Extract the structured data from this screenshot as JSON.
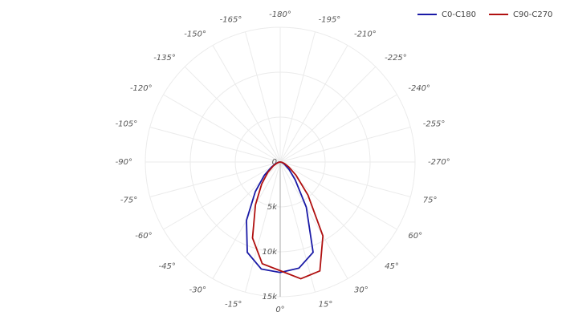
{
  "chart_data": {
    "type": "polar",
    "theta": [
      -90,
      -80,
      -70,
      -60,
      -50,
      -40,
      -30,
      -20,
      -10,
      0,
      10,
      20,
      30,
      40,
      50,
      60,
      70,
      80,
      90
    ],
    "series": [
      {
        "name": "C0-C180",
        "color": "#1a1aa6",
        "values": [
          0,
          200,
          500,
          1100,
          2300,
          4300,
          7500,
          10700,
          12100,
          12300,
          12000,
          10700,
          5800,
          2600,
          1300,
          600,
          300,
          100,
          0
        ]
      },
      {
        "name": "C90-C270",
        "color": "#b01010",
        "values": [
          0,
          150,
          400,
          900,
          1800,
          3200,
          5500,
          9000,
          11500,
          12100,
          13200,
          12900,
          9500,
          4800,
          2300,
          1100,
          500,
          200,
          0
        ]
      }
    ],
    "rlim": [
      0,
      15000
    ],
    "rticks": [
      0,
      {
        "value": 5000,
        "label": "5k"
      },
      {
        "value": 10000,
        "label": "10k"
      },
      {
        "value": 15000,
        "label": "15k"
      }
    ],
    "thetaticks": [
      {
        "value": 0,
        "label": "0°"
      },
      {
        "value": 15,
        "label": "15°"
      },
      {
        "value": 30,
        "label": "30°"
      },
      {
        "value": 45,
        "label": "45°"
      },
      {
        "value": 60,
        "label": "60°"
      },
      {
        "value": 75,
        "label": "75°"
      },
      {
        "value": -270,
        "label": "-270°"
      },
      {
        "value": -255,
        "label": "-255°"
      },
      {
        "value": -240,
        "label": "-240°"
      },
      {
        "value": -225,
        "label": "-225°"
      },
      {
        "value": -210,
        "label": "-210°"
      },
      {
        "value": -195,
        "label": "-195°"
      },
      {
        "value": -180,
        "label": "-180°"
      },
      {
        "value": -165,
        "label": "-165°"
      },
      {
        "value": -150,
        "label": "-150°"
      },
      {
        "value": -135,
        "label": "-135°"
      },
      {
        "value": -120,
        "label": "-120°"
      },
      {
        "value": -105,
        "label": "-105°"
      },
      {
        "value": -90,
        "label": "-90°"
      },
      {
        "value": -75,
        "label": "-75°"
      },
      {
        "value": -60,
        "label": "-60°"
      },
      {
        "value": -45,
        "label": "-45°"
      },
      {
        "value": -30,
        "label": "-30°"
      },
      {
        "value": -15,
        "label": "-15°"
      }
    ],
    "grid": true,
    "legend": "top-right"
  }
}
